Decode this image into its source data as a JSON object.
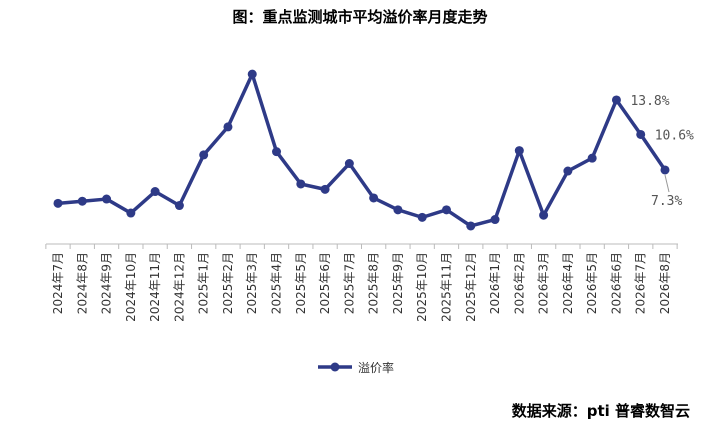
{
  "chart_data": {
    "type": "line",
    "title": "图：重点监测城市平均溢价率月度走势",
    "source": "数据来源：pti 普睿数智云",
    "categories": [
      "2024年7月",
      "2024年8月",
      "2024年9月",
      "2024年10月",
      "2024年11月",
      "2024年12月",
      "2025年1月",
      "2025年2月",
      "2025年3月",
      "2025年4月",
      "2025年5月",
      "2025年6月",
      "2025年7月",
      "2025年8月",
      "2025年9月",
      "2025年10月",
      "2025年11月",
      "2025年12月",
      "2026年1月",
      "2026年2月",
      "2026年3月",
      "2026年4月",
      "2026年5月",
      "2026年6月",
      "2026年7月",
      "2026年8月"
    ],
    "series": [
      {
        "name": "溢价率",
        "color": "#2e3a87",
        "values": [
          4.2,
          4.4,
          4.6,
          3.3,
          5.3,
          4.0,
          8.7,
          11.3,
          16.2,
          9.0,
          6.0,
          5.5,
          7.9,
          4.7,
          3.6,
          2.9,
          3.6,
          2.1,
          2.7,
          9.1,
          3.1,
          7.2,
          8.4,
          13.8,
          10.6,
          7.3
        ],
        "value_labels": [
          null,
          null,
          null,
          null,
          null,
          null,
          null,
          null,
          null,
          null,
          null,
          null,
          null,
          null,
          null,
          null,
          null,
          null,
          null,
          null,
          null,
          null,
          null,
          "13.8%",
          "10.6%",
          "7.3%"
        ]
      }
    ],
    "legend": "bottom"
  }
}
